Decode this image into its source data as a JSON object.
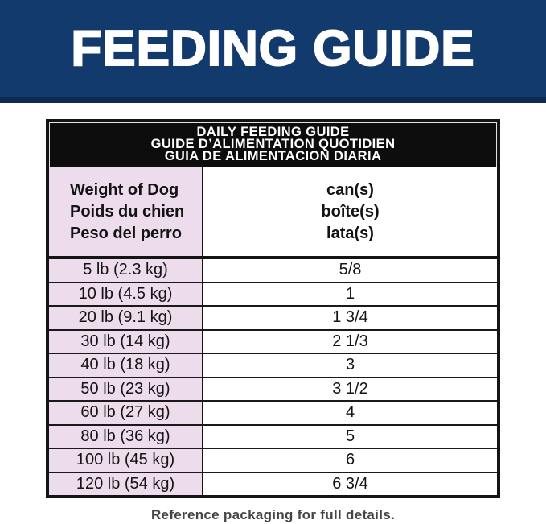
{
  "banner": {
    "title": "FEEDING GUIDE"
  },
  "table": {
    "title_lines": [
      "DAILY FEEDING GUIDE",
      "GUIDE D’ALIMENTATION QUOTIDIEN",
      "GUIA DE ALIMENTACION DIARIA"
    ],
    "col_headers": {
      "weight": [
        "Weight of Dog",
        "Poids du chien",
        "Peso del perro"
      ],
      "cans": [
        "can(s)",
        "boîte(s)",
        "lata(s)"
      ]
    },
    "rows": [
      {
        "weight": "5 lb (2.3 kg)",
        "cans": "5/8"
      },
      {
        "weight": "10 lb (4.5 kg)",
        "cans": "1"
      },
      {
        "weight": "20 lb (9.1 kg)",
        "cans": "1 3/4"
      },
      {
        "weight": "30 lb (14 kg)",
        "cans": "2 1/3"
      },
      {
        "weight": "40 lb (18 kg)",
        "cans": "3"
      },
      {
        "weight": "50 lb (23 kg)",
        "cans": "3 1/2"
      },
      {
        "weight": "60 lb (27 kg)",
        "cans": "4"
      },
      {
        "weight": "80 lb (36 kg)",
        "cans": "5"
      },
      {
        "weight": "100 lb (45 kg)",
        "cans": "6"
      },
      {
        "weight": "120 lb (54 kg)",
        "cans": "6 3/4"
      }
    ]
  },
  "footer": {
    "note": "Reference packaging for full details."
  },
  "colors": {
    "banner_blue": "#133a6d",
    "banner_blue_dark": "#0d2b52",
    "title_bar_black": "#0d0d0d",
    "cell_pink": "#ecdcec",
    "border_black": "#141414",
    "footer_gray": "#454545"
  }
}
